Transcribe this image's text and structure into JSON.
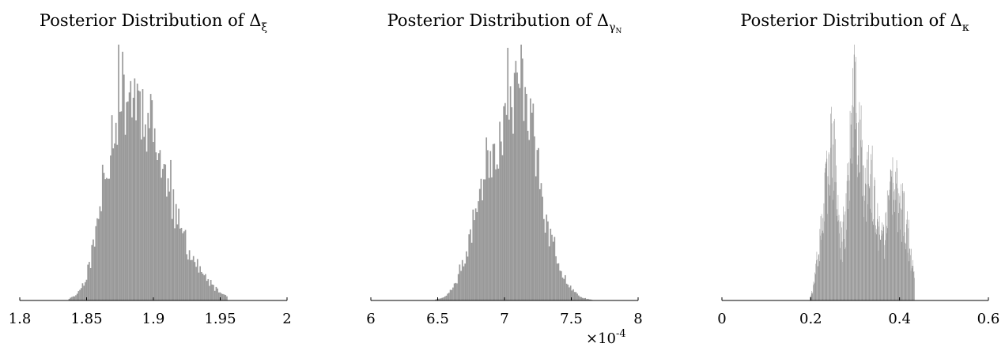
{
  "figure": {
    "bar_color": "#999999",
    "axis_color": "#000000"
  },
  "chart_data": [
    {
      "type": "bar",
      "title_prefix": "Posterior Distribution of ",
      "title_symbol": "Δ",
      "title_subscript": "ξ",
      "title_subscript_sub": "",
      "xlim": [
        1.8,
        2.0
      ],
      "xticks": [
        1.8,
        1.85,
        1.9,
        1.95,
        2.0
      ],
      "xtick_labels": [
        "1.8",
        "1.85",
        "1.9",
        "1.95",
        "2"
      ],
      "x_exponent_base": "",
      "x_exponent_power": "",
      "y_axis_visible": false,
      "grid": false,
      "bin_range": [
        1.8365,
        1.9545
      ],
      "bin_width": 0.001,
      "ylim": [
        0,
        100
      ],
      "modes": [
        {
          "center": 1.872,
          "sd": 0.012,
          "weight": 62
        },
        {
          "center": 1.893,
          "sd": 0.014,
          "weight": 58
        },
        {
          "center": 1.915,
          "sd": 0.018,
          "weight": 22
        }
      ],
      "noise_amplitude": 0.22,
      "seed": 11
    },
    {
      "type": "bar",
      "title_prefix": "Posterior Distribution of ",
      "title_symbol": "Δ",
      "title_subscript": "γ",
      "title_subscript_sub": "N",
      "xlim": [
        6.0,
        8.0
      ],
      "xticks": [
        6.0,
        6.5,
        7.0,
        7.5,
        8.0
      ],
      "xtick_labels": [
        "6",
        "6.5",
        "7",
        "7.5",
        "8"
      ],
      "x_exponent_base": "×10",
      "x_exponent_power": "-4",
      "y_axis_visible": false,
      "grid": false,
      "bin_range": [
        6.48,
        7.65
      ],
      "bin_width": 0.01,
      "ylim": [
        0,
        100
      ],
      "modes": [
        {
          "center": 6.92,
          "sd": 0.14,
          "weight": 55
        },
        {
          "center": 7.14,
          "sd": 0.09,
          "weight": 58
        },
        {
          "center": 7.3,
          "sd": 0.12,
          "weight": 18
        }
      ],
      "noise_amplitude": 0.2,
      "seed": 23
    },
    {
      "type": "bar",
      "title_prefix": "Posterior Distribution of ",
      "title_symbol": "Δ",
      "title_subscript": "κ",
      "title_subscript_sub": "",
      "xlim": [
        0.0,
        0.6
      ],
      "xticks": [
        0.0,
        0.2,
        0.4,
        0.6
      ],
      "xtick_labels": [
        "0",
        "0.2",
        "0.4",
        "0.6"
      ],
      "x_exponent_base": "",
      "x_exponent_power": "",
      "y_axis_visible": false,
      "grid": false,
      "bin_range": [
        0.198,
        0.433
      ],
      "bin_width": 0.001,
      "ylim": [
        0,
        100
      ],
      "modes": [
        {
          "center": 0.248,
          "sd": 0.012,
          "weight": 55
        },
        {
          "center": 0.298,
          "sd": 0.015,
          "weight": 70
        },
        {
          "center": 0.335,
          "sd": 0.015,
          "weight": 40
        },
        {
          "center": 0.385,
          "sd": 0.016,
          "weight": 42
        },
        {
          "center": 0.415,
          "sd": 0.012,
          "weight": 22
        },
        {
          "center": 0.225,
          "sd": 0.012,
          "weight": 20
        }
      ],
      "noise_amplitude": 0.35,
      "seed": 37
    }
  ]
}
